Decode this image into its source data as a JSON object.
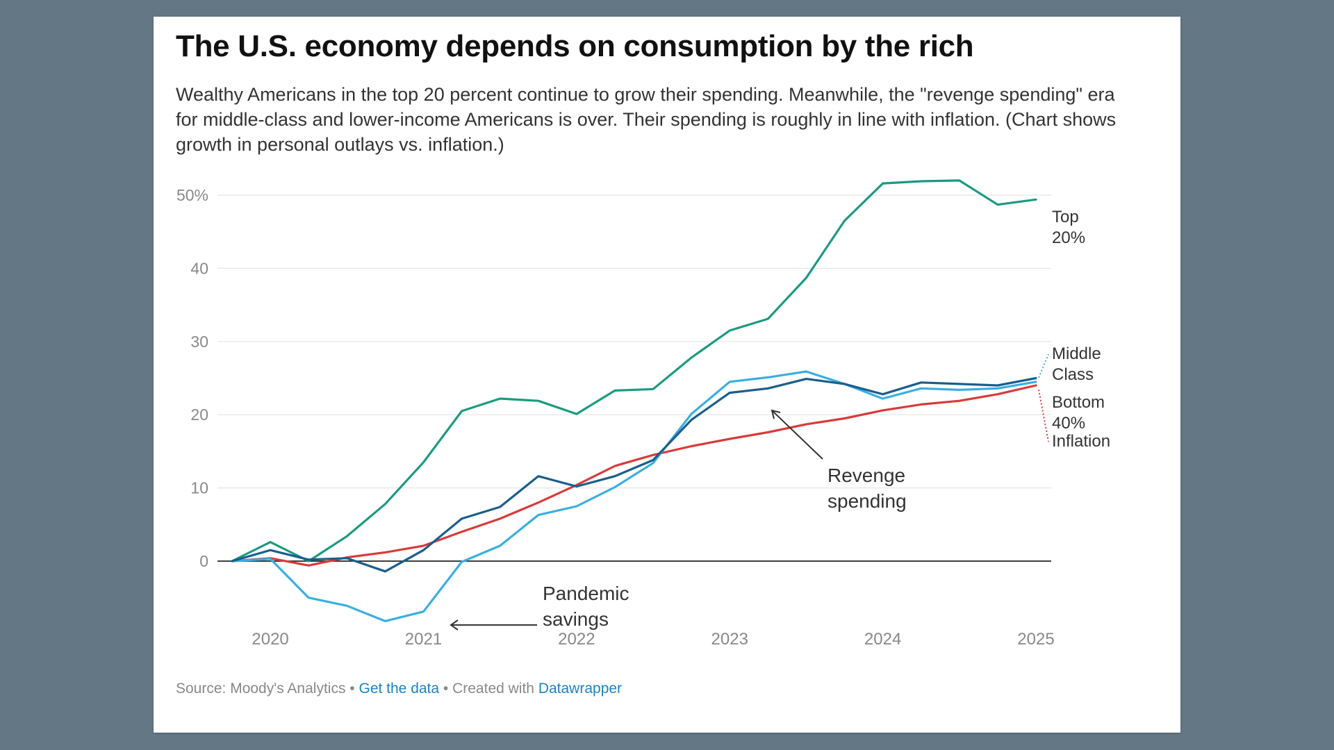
{
  "chart_data": {
    "type": "line",
    "title": "The U.S. economy depends on consumption by the rich",
    "subtitle": "Wealthy Americans in the top 20 percent continue to grow their spending. Meanwhile, the \"revenge spending\" era for middle-class and lower-income Americans is over. Their spending is roughly in line with inflation. (Chart shows growth in personal outlays vs. inflation.)",
    "xlabel": "",
    "ylabel": "",
    "x": [
      2019.75,
      2020.0,
      2020.25,
      2020.5,
      2020.75,
      2021.0,
      2021.25,
      2021.5,
      2021.75,
      2022.0,
      2022.25,
      2022.5,
      2022.75,
      2023.0,
      2023.25,
      2023.5,
      2023.75,
      2024.0,
      2024.25,
      2024.5,
      2024.75,
      2025.0
    ],
    "xlim": [
      2019.75,
      2025.0
    ],
    "ylim": [
      -8,
      52
    ],
    "x_ticks": [
      2020,
      2021,
      2022,
      2023,
      2024,
      2025
    ],
    "y_ticks": [
      0,
      10,
      20,
      30,
      40,
      50
    ],
    "y_tick_labels": [
      "0",
      "10",
      "20",
      "30",
      "40",
      "50%"
    ],
    "grid": true,
    "series": [
      {
        "name": "Top 20%",
        "color": "#1b9a80",
        "label_lines": [
          "Top",
          "20%"
        ],
        "values": [
          0,
          2.6,
          0.0,
          3.4,
          7.8,
          13.5,
          20.5,
          22.2,
          21.9,
          20.1,
          23.3,
          23.5,
          27.8,
          31.5,
          33.1,
          38.7,
          46.5,
          51.6,
          51.9,
          52.0,
          48.7,
          49.4
        ]
      },
      {
        "name": "Middle Class",
        "color": "#3aaee0",
        "label_lines": [
          "Middle",
          "Class"
        ],
        "values": [
          0,
          0.3,
          -5.0,
          -6.1,
          -8.2,
          -6.9,
          -0.1,
          2.1,
          6.3,
          7.5,
          10.1,
          13.4,
          20.1,
          24.5,
          25.1,
          25.9,
          24.2,
          22.2,
          23.6,
          23.4,
          23.6,
          24.5
        ]
      },
      {
        "name": "Bottom 40%",
        "color": "#1a5e8c",
        "label_lines": [
          "Bottom",
          "40%"
        ],
        "values": [
          0,
          1.5,
          0.2,
          0.4,
          -1.4,
          1.5,
          5.8,
          7.4,
          11.6,
          10.2,
          11.6,
          13.8,
          19.3,
          23.0,
          23.6,
          24.9,
          24.2,
          22.8,
          24.4,
          24.2,
          24.0,
          25.0
        ]
      },
      {
        "name": "Inflation",
        "color": "#d93a3a",
        "label_lines": [
          "Inflation"
        ],
        "values": [
          0,
          0.4,
          -0.6,
          0.5,
          1.2,
          2.1,
          4.0,
          5.8,
          8.0,
          10.4,
          13.0,
          14.5,
          15.7,
          16.7,
          17.6,
          18.7,
          19.5,
          20.6,
          21.4,
          21.9,
          22.8,
          24.0
        ]
      }
    ],
    "annotations": [
      {
        "lines": [
          "Pandemic",
          "savings"
        ],
        "arrow_to": "Middle Class 2021.25"
      },
      {
        "lines": [
          "Revenge",
          "spending"
        ],
        "arrow_to": "Bottom 40% 2023.25"
      }
    ]
  },
  "footer": {
    "source": "Source: Moody's Analytics",
    "sep1": " • ",
    "get_data": "Get the data",
    "sep2": " • Created with ",
    "datawrapper": "Datawrapper"
  }
}
